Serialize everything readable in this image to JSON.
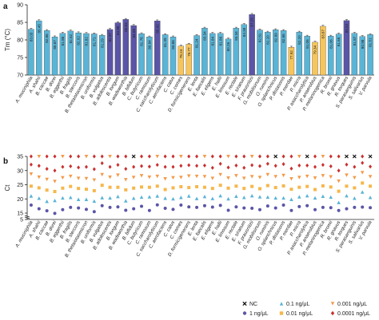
{
  "panels": [
    {
      "label": "a"
    },
    {
      "label": "b"
    }
  ],
  "chart_data": [
    {
      "type": "bar",
      "panel": "a",
      "ylabel": "Tm (°C)",
      "ylim": [
        70,
        90
      ],
      "yticks": [
        "70",
        "75",
        "80",
        "85",
        "90"
      ],
      "categories": [
        "A. muciniphila",
        "A. shahii",
        "B. caccae",
        "B. dorei",
        "B. eggerthii",
        "B. fragilis",
        "B. stercoris",
        "B. thetaiotaomicron",
        "B. uniformis",
        "B. vulgatus",
        "B. adolescentis",
        "B. longum",
        "B. wadsworthia",
        "B. bifidum",
        "C. butyricum",
        "C. ramosum",
        "C. saccharolyticum",
        "C. aerofaciens",
        "C. catus",
        "C. comes",
        "D. formicigenerans",
        "E. lenta",
        "E. faecalis",
        "E. eligens",
        "E. hallii",
        "E. limosum",
        "E. rectale",
        "E. siraeum",
        "F. prausnitzii",
        "G. mobilisinum",
        "O. ruminis",
        "O. splanchnicus",
        "P. distasonis",
        "P. merdae",
        "P. micra",
        "P. asaccharolytica",
        "P. anaerobius",
        "P. melaninogenica",
        "R. bromii",
        "R. gnavus",
        "R. torques",
        "S. parasanguinis",
        "S. salivarius",
        "V. parvula"
      ],
      "values": [
        83.03,
        85.45,
        82.66,
        80.87,
        81.86,
        82.52,
        82.02,
        81.82,
        81.71,
        81.29,
        82.97,
        84.88,
        85.83,
        84.09,
        81.76,
        80.84,
        85.42,
        81.49,
        80.86,
        78.24,
        78.77,
        81.24,
        83.34,
        81.84,
        81.86,
        80.26,
        83.34,
        84.38,
        87.25,
        82.81,
        82.2,
        82.89,
        82.66,
        77.92,
        82.2,
        81.06,
        79.34,
        83.87,
        81.06,
        81.66,
        85.52,
        81.87,
        80.98,
        81.51
      ],
      "value_labels": [
        "83.03",
        "85.45",
        "82.66",
        "80.87",
        "81.86",
        "82.52",
        "82.02",
        "81.82",
        "81.71",
        "81.29",
        "82.97",
        "84.88",
        "85.83",
        "84.09",
        "81.76",
        "80.84",
        "85.42",
        "81.49",
        "80.86",
        "78.24",
        "78.77",
        "81.24",
        "83.34",
        "81.84",
        "81.86",
        "80.26",
        "83.34",
        "84.38",
        "87.25",
        "82.81",
        "82.20",
        "82.89",
        "82.66",
        "77.92",
        "82.20",
        "81.06",
        "79.34",
        "83.87",
        "81.06",
        "81.66",
        "85.52",
        "81.87",
        "80.98",
        "81.51"
      ],
      "bar_colors": {
        "blue": "#5ab4d6",
        "purple": "#5b55a7",
        "yellow": "#f6c55c"
      }
    },
    {
      "type": "scatter",
      "panel": "b",
      "ylabel": "Ct",
      "ylim": [
        5,
        35
      ],
      "yticks": [
        "5",
        "15",
        "20",
        "25",
        "30",
        "35"
      ],
      "categories_ref": "same as panel a",
      "series": [
        {
          "name": "NC",
          "marker": "x",
          "color": "#111111"
        },
        {
          "name": "1 ng/μL",
          "marker": "circle",
          "color": "#5b55a7"
        },
        {
          "name": "0.1 ng/μL",
          "marker": "triangle-up",
          "color": "#5ab4d6"
        },
        {
          "name": "0.01 ng/μL",
          "marker": "square",
          "color": "#f6b74b"
        },
        {
          "name": "0.001 ng/μL",
          "marker": "triangle-down",
          "color": "#f39a49"
        },
        {
          "name": "0.0001 ng/μL",
          "marker": "diamond",
          "color": "#c8302f"
        }
      ],
      "values_1": [
        17.8,
        16.5,
        15.8,
        14.9,
        16.2,
        17.0,
        16.8,
        16.3,
        15.5,
        17.6,
        17.0,
        17.2,
        16.0,
        16.5,
        17.4,
        15.9,
        17.9,
        16.7,
        16.3,
        17.8,
        17.2,
        17.0,
        17.6,
        17.1,
        17.7,
        16.0,
        17.2,
        16.8,
        16.7,
        16.2,
        17.5,
        16.8,
        17.8,
        15.9,
        17.3,
        17.6,
        16.2,
        17.0,
        16.9,
        15.9,
        16.5,
        17.0,
        17.1,
        16.9
      ],
      "values_01": [
        21.0,
        20.2,
        19.1,
        19.4,
        20.3,
        20.5,
        19.8,
        19.8,
        19.2,
        20.4,
        20.3,
        20.8,
        19.3,
        20.2,
        20.6,
        20.7,
        21.0,
        20.2,
        20.0,
        20.5,
        21.0,
        20.1,
        20.8,
        20.1,
        21.1,
        20.0,
        20.9,
        20.5,
        21.1,
        20.7,
        20.6,
        20.3,
        20.3,
        19.8,
        20.7,
        21.1,
        20.3,
        20.9,
        20.6,
        18.7,
        21.1,
        20.2,
        22.4,
        20.5
      ],
      "values_001": [
        24.5,
        23.9,
        23.1,
        22.6,
        23.8,
        24.4,
        23.7,
        23.4,
        22.9,
        24.8,
        24.1,
        24.1,
        23.2,
        23.8,
        24.2,
        24.1,
        24.5,
        23.3,
        23.9,
        24.3,
        24.0,
        24.3,
        24.1,
        23.7,
        24.8,
        23.8,
        24.5,
        23.7,
        24.4,
        23.6,
        24.7,
        24.0,
        24.6,
        23.4,
        24.1,
        24.4,
        23.3,
        24.6,
        24.2,
        22.7,
        24.5,
        23.9,
        25.6,
        24.5
      ],
      "values_0001": [
        28.8,
        27.7,
        26.9,
        26.2,
        27.5,
        28.0,
        27.3,
        27.2,
        26.7,
        28.6,
        27.7,
        28.4,
        26.8,
        27.6,
        28.2,
        27.7,
        28.0,
        27.1,
        27.5,
        27.6,
        28.1,
        28.0,
        27.9,
        27.3,
        28.6,
        27.4,
        28.2,
        27.3,
        27.9,
        27.6,
        28.6,
        27.9,
        28.3,
        27.1,
        27.6,
        28.0,
        27.4,
        28.2,
        27.8,
        26.3,
        28.4,
        27.5,
        29.3,
        27.9
      ],
      "values_00001": [
        32.1,
        31.7,
        30.6,
        30.0,
        31.3,
        31.5,
        31.1,
        31.3,
        30.5,
        32.6,
        31.3,
        32.0,
        30.6,
        31.3,
        31.6,
        31.4,
        32.0,
        31.3,
        31.3,
        31.7,
        31.9,
        31.7,
        31.8,
        31.0,
        32.4,
        31.1,
        31.8,
        31.0,
        31.9,
        31.6,
        32.4,
        31.7,
        32.3,
        30.7,
        31.8,
        31.8,
        31.3,
        32.0,
        31.5,
        30.0,
        32.1,
        31.3,
        32.7,
        31.4
      ],
      "values_0_0001_high": [
        35,
        35,
        35,
        35,
        35,
        35,
        35,
        35,
        35,
        35,
        35,
        35,
        35,
        35,
        35,
        35,
        35,
        35,
        35,
        35,
        35,
        35,
        35,
        35,
        35,
        35,
        35,
        35,
        35,
        35,
        35,
        35,
        35,
        35,
        35,
        35,
        35,
        35,
        35,
        35,
        35,
        35,
        35,
        35
      ],
      "nc_positions": [
        13,
        31,
        35,
        40,
        41,
        43
      ],
      "legend_position": "bottom-right"
    }
  ]
}
